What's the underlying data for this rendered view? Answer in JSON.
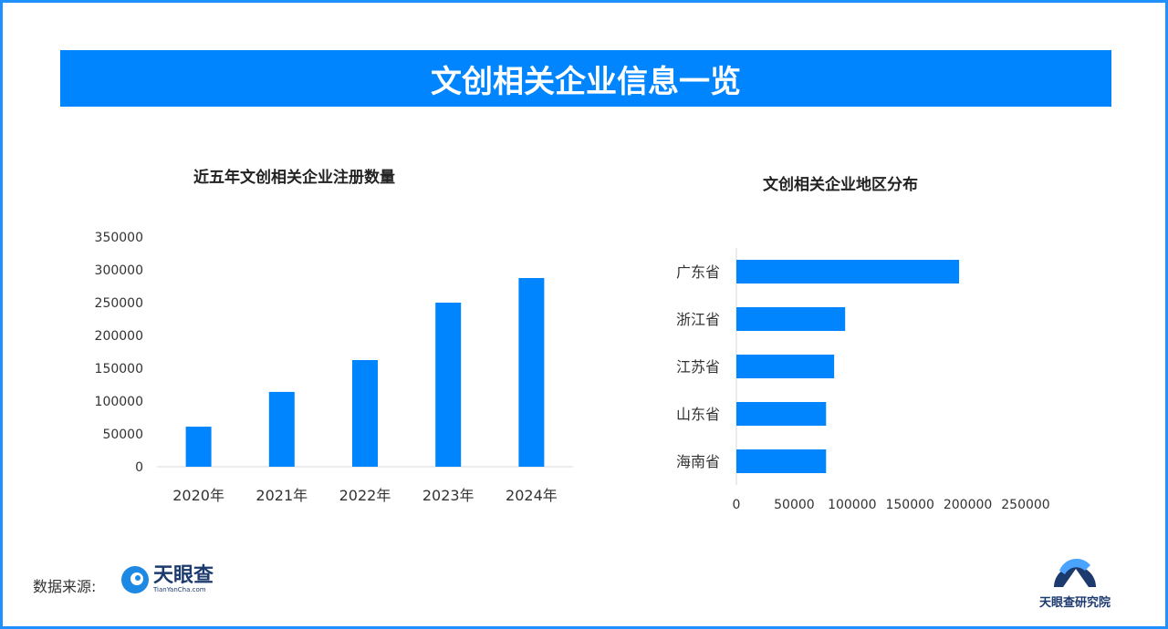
{
  "title": "文创相关企业信息一览",
  "source_label": "数据来源:",
  "source_logo": {
    "name": "天眼查",
    "sub": "TianYanCha.com"
  },
  "institute_logo": "天眼查研究院",
  "colors": {
    "accent": "#0085FF",
    "frame": "#1E90FF"
  },
  "chart_data": [
    {
      "type": "bar",
      "title": "近五年文创相关企业注册数量",
      "categories": [
        "2020年",
        "2021年",
        "2022年",
        "2023年",
        "2024年"
      ],
      "values": [
        61000,
        114000,
        162500,
        250000,
        287500
      ],
      "ylim": [
        0,
        350000
      ],
      "yticks": [
        "0",
        "50000",
        "100000",
        "150000",
        "200000",
        "250000",
        "300000",
        "350000"
      ],
      "grid": false
    },
    {
      "type": "bar",
      "orientation": "horizontal",
      "title": "文创相关企业地区分布",
      "categories": [
        "广东省",
        "浙江省",
        "江苏省",
        "山东省",
        "海南省"
      ],
      "values": [
        192500,
        94000,
        84500,
        77500,
        77500
      ],
      "xlim": [
        0,
        250000
      ],
      "xticks": [
        "0",
        "50000",
        "100000",
        "150000",
        "200000",
        "250000"
      ],
      "grid": false
    }
  ]
}
